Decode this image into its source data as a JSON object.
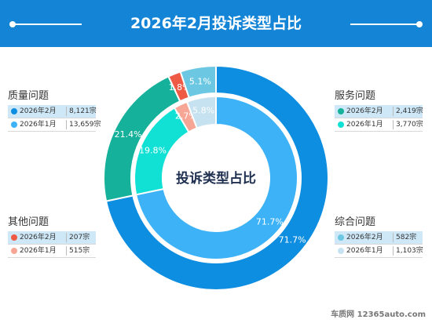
{
  "title": "2026年2月投诉类型占比",
  "center_label": "投诉类型占比",
  "watermark": "车质网 12365auto.com",
  "legend_groups": [
    {
      "name": "质量问题",
      "rows": [
        {
          "label": "2026年2月",
          "value": "8,121宗"
        },
        {
          "label": "2026年1月",
          "value": "13,659宗"
        }
      ]
    },
    {
      "name": "服务问题",
      "rows": [
        {
          "label": "2026年2月",
          "value": "2,419宗"
        },
        {
          "label": "2026年1月",
          "value": "3,770宗"
        }
      ]
    },
    {
      "name": "其他问题",
      "rows": [
        {
          "label": "2026年2月",
          "value": "207宗"
        },
        {
          "label": "2026年1月",
          "value": "515宗"
        }
      ]
    },
    {
      "name": "综合问题",
      "rows": [
        {
          "label": "2026年2月",
          "value": "582宗"
        },
        {
          "label": "2026年1月",
          "value": "1,103宗"
        }
      ]
    }
  ],
  "colors": {
    "header": "#1485d6",
    "outer": [
      "#0e8ee0",
      "#15b19a",
      "#ef5a45",
      "#6cc8e2"
    ],
    "inner": [
      "#3db2f7",
      "#11e1d4",
      "#f7a595",
      "#c6e1ef"
    ]
  },
  "chart_data": {
    "type": "pie",
    "title": "2026年2月投诉类型占比",
    "categories": [
      "质量问题",
      "服务问题",
      "其他问题",
      "综合问题"
    ],
    "series": [
      {
        "name": "2026年2月",
        "ring": "outer",
        "values": [
          8121,
          2419,
          207,
          582
        ],
        "labels": [
          "71.7%",
          "21.4%",
          "1.8%",
          "5.1%"
        ]
      },
      {
        "name": "2026年1月",
        "ring": "inner",
        "values": [
          13659,
          3770,
          515,
          1103
        ],
        "labels": [
          "71.7%",
          "19.8%",
          "2.7%",
          "5.8%"
        ]
      }
    ]
  }
}
